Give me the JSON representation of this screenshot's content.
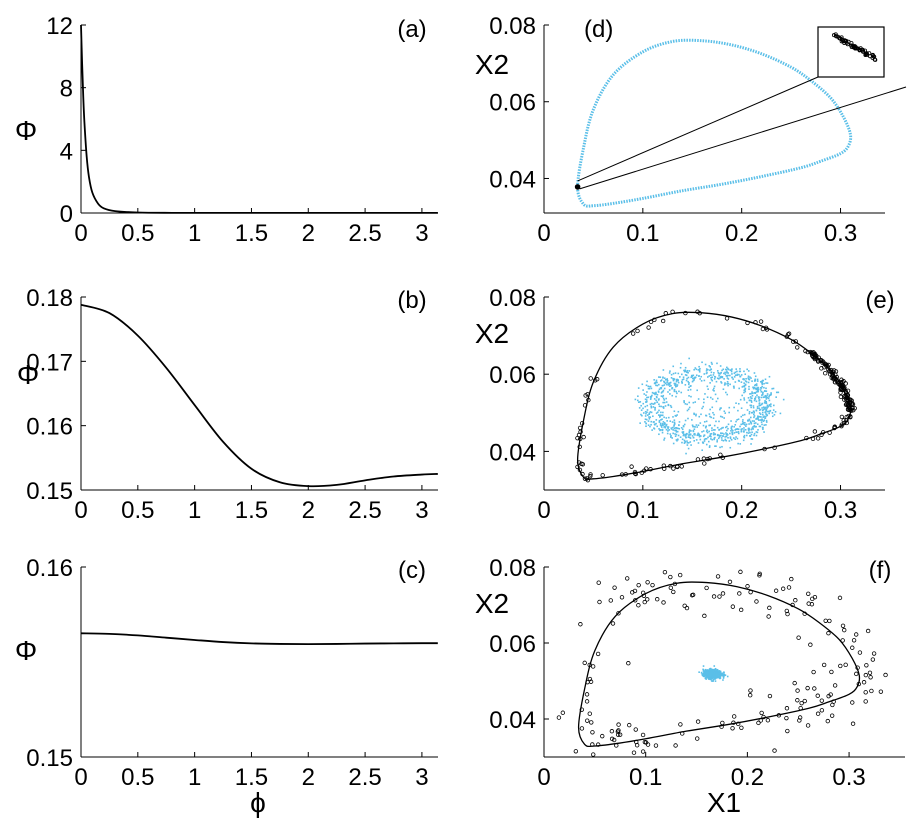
{
  "chart_data": [
    {
      "id": "a",
      "type": "line",
      "panel_label": "(a)",
      "ylabel": "Φ",
      "xlabel": "",
      "xlim": [
        0,
        3.1416
      ],
      "ylim": [
        0,
        12
      ],
      "xticks": [
        "0",
        "0.5",
        "1",
        "1.5",
        "2",
        "2.5",
        "3"
      ],
      "yticks": [
        "0",
        "4",
        "8",
        "12"
      ],
      "series": [
        {
          "x": [
            0,
            0.01,
            0.02,
            0.03,
            0.05,
            0.07,
            0.1,
            0.15,
            0.2,
            0.3,
            0.5,
            0.8,
            1.2,
            2,
            3.14
          ],
          "y": [
            12,
            9.5,
            7.4,
            5.8,
            3.6,
            2.3,
            1.3,
            0.6,
            0.3,
            0.12,
            0.03,
            0.01,
            0.01,
            0.01,
            0.01
          ]
        }
      ]
    },
    {
      "id": "b",
      "type": "line",
      "panel_label": "(b)",
      "ylabel": "Φ",
      "xlabel": "",
      "xlim": [
        0,
        3.1416
      ],
      "ylim": [
        0.15,
        0.18
      ],
      "xticks": [
        "0",
        "0.5",
        "1",
        "1.5",
        "2",
        "2.5",
        "3"
      ],
      "yticks": [
        "0.15",
        "0.16",
        "0.17",
        "0.18"
      ],
      "series": [
        {
          "x": [
            0,
            0.25,
            0.5,
            0.75,
            1.0,
            1.25,
            1.5,
            1.75,
            2.0,
            2.25,
            2.5,
            2.75,
            3.0,
            3.14
          ],
          "y": [
            0.1788,
            0.1775,
            0.174,
            0.169,
            0.1632,
            0.1575,
            0.1533,
            0.1512,
            0.1506,
            0.1508,
            0.1515,
            0.1521,
            0.1524,
            0.1525
          ]
        }
      ]
    },
    {
      "id": "c",
      "type": "line",
      "panel_label": "(c)",
      "ylabel": "Φ",
      "xlabel": "ϕ",
      "xlim": [
        0,
        3.1416
      ],
      "ylim": [
        0.15,
        0.16
      ],
      "xticks": [
        "0",
        "0.5",
        "1",
        "1.5",
        "2",
        "2.5",
        "3"
      ],
      "yticks": [
        "0.15",
        "0.16"
      ],
      "series": [
        {
          "x": [
            0,
            0.25,
            0.5,
            0.75,
            1.0,
            1.25,
            1.5,
            1.75,
            2.0,
            2.25,
            2.5,
            2.75,
            3.0,
            3.14
          ],
          "y": [
            0.15651,
            0.15648,
            0.1564,
            0.15628,
            0.15616,
            0.15605,
            0.15598,
            0.15595,
            0.15594,
            0.15595,
            0.15597,
            0.15598,
            0.15599,
            0.15599
          ]
        }
      ]
    },
    {
      "id": "d",
      "type": "scatter",
      "panel_label": "(d)",
      "ylabel": "X2",
      "xlabel": "",
      "xlim": [
        0,
        0.345
      ],
      "ylim": [
        0.031,
        0.08
      ],
      "xticks": [
        "0",
        "0.1",
        "0.2",
        "0.3"
      ],
      "yticks": [
        "0.04",
        "0.06",
        "0.08"
      ],
      "cloud_color": "#5bbfe8",
      "cycle_point": [
        0.034,
        0.0378
      ],
      "inset": true
    },
    {
      "id": "e",
      "type": "scatter",
      "panel_label": "(e)",
      "ylabel": "X2",
      "xlabel": "",
      "xlim": [
        0,
        0.345
      ],
      "ylim": [
        0.03,
        0.08
      ],
      "xticks": [
        "0",
        "0.1",
        "0.2",
        "0.3"
      ],
      "yticks": [
        "0.04",
        "0.06",
        "0.08"
      ],
      "cloud_color": "#5bbfe8",
      "cloud_center": [
        0.165,
        0.052
      ]
    },
    {
      "id": "f",
      "type": "scatter",
      "panel_label": "(f)",
      "ylabel": "X2",
      "xlabel": "X1",
      "xlim": [
        0,
        0.355
      ],
      "ylim": [
        0.03,
        0.08
      ],
      "xticks": [
        "0",
        "0.1",
        "0.2",
        "0.3"
      ],
      "yticks": [
        "0.04",
        "0.06",
        "0.08"
      ],
      "cloud_color": "#5bbfe8",
      "cloud_center": [
        0.165,
        0.052
      ]
    }
  ],
  "orbit": {
    "x": [
      0.034,
      0.04,
      0.05,
      0.07,
      0.1,
      0.13,
      0.16,
      0.19,
      0.22,
      0.25,
      0.27,
      0.29,
      0.303,
      0.31,
      0.308,
      0.3,
      0.28,
      0.26,
      0.22,
      0.18,
      0.14,
      0.1,
      0.07,
      0.05,
      0.04,
      0.034
    ],
    "y": [
      0.0378,
      0.048,
      0.058,
      0.067,
      0.073,
      0.0757,
      0.0759,
      0.0748,
      0.0725,
      0.069,
      0.0655,
      0.061,
      0.056,
      0.0515,
      0.0485,
      0.0465,
      0.0445,
      0.0428,
      0.0405,
      0.0385,
      0.0368,
      0.0348,
      0.0335,
      0.0329,
      0.0333,
      0.0378
    ]
  }
}
